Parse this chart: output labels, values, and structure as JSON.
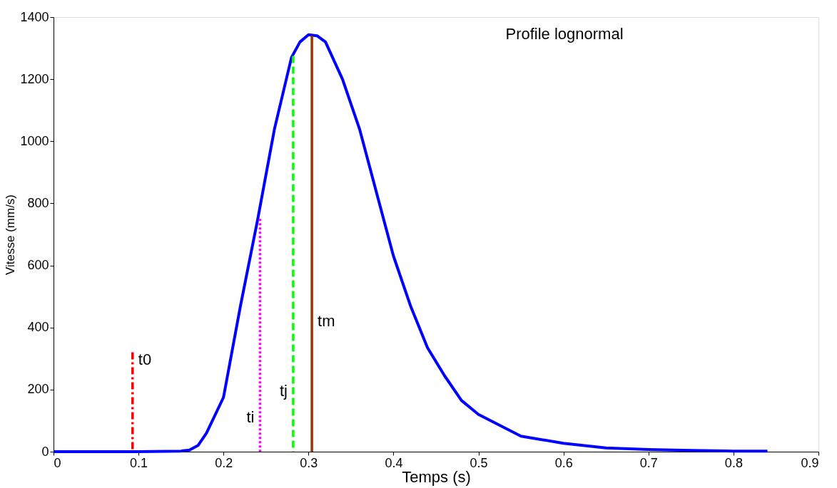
{
  "chart_data": {
    "type": "line",
    "title": "Profile lognormal",
    "xlabel": "Temps (s)",
    "ylabel": "Vitesse (mm/s)",
    "xlim": [
      0,
      0.9
    ],
    "xticks": [
      0,
      0.1,
      0.2,
      0.3,
      0.4,
      0.5,
      0.6,
      0.7,
      0.8,
      0.9
    ],
    "ylim": [
      0,
      1400
    ],
    "yticks": [
      0,
      200,
      400,
      600,
      800,
      1000,
      1200,
      1400
    ],
    "grid": false,
    "marker": "none",
    "series": [
      {
        "color": "#0000ff",
        "line_style": "solid",
        "x": [
          0,
          0.05,
          0.1,
          0.15,
          0.16,
          0.17,
          0.18,
          0.2,
          0.22,
          0.24,
          0.26,
          0.28,
          0.29,
          0.3,
          0.31,
          0.32,
          0.34,
          0.36,
          0.38,
          0.4,
          0.42,
          0.44,
          0.46,
          0.48,
          0.5,
          0.55,
          0.6,
          0.65,
          0.7,
          0.75,
          0.8,
          0.84
        ],
        "values": [
          0,
          0,
          0,
          2,
          5,
          20,
          60,
          175,
          470,
          745,
          1040,
          1270,
          1320,
          1343,
          1340,
          1320,
          1200,
          1040,
          835,
          630,
          470,
          335,
          245,
          165,
          120,
          50,
          27,
          12,
          7,
          4,
          2,
          2
        ]
      },
      {
        "color": "#ff0000",
        "line_style": "dashdot",
        "x": [
          0.093,
          0.093
        ],
        "values": [
          320,
          0
        ]
      },
      {
        "color": "#ff00ff",
        "line_style": "dotted",
        "x": [
          0.243,
          0.243
        ],
        "values": [
          750,
          0
        ]
      },
      {
        "color": "#00ff00",
        "line_style": "dashed",
        "x": [
          0.282,
          0.282
        ],
        "values": [
          1275,
          0
        ]
      },
      {
        "color": "#993300",
        "line_style": "solid",
        "x": [
          0.304,
          0.304
        ],
        "values": [
          1340,
          0
        ]
      }
    ],
    "annotations": [
      {
        "text": "t0",
        "x": 0.093,
        "y": 296
      },
      {
        "text": "ti",
        "x": 0.243,
        "y": 110
      },
      {
        "text": "tj",
        "x": 0.282,
        "y": 195
      },
      {
        "text": "tm",
        "x": 0.304,
        "y": 420
      }
    ]
  }
}
